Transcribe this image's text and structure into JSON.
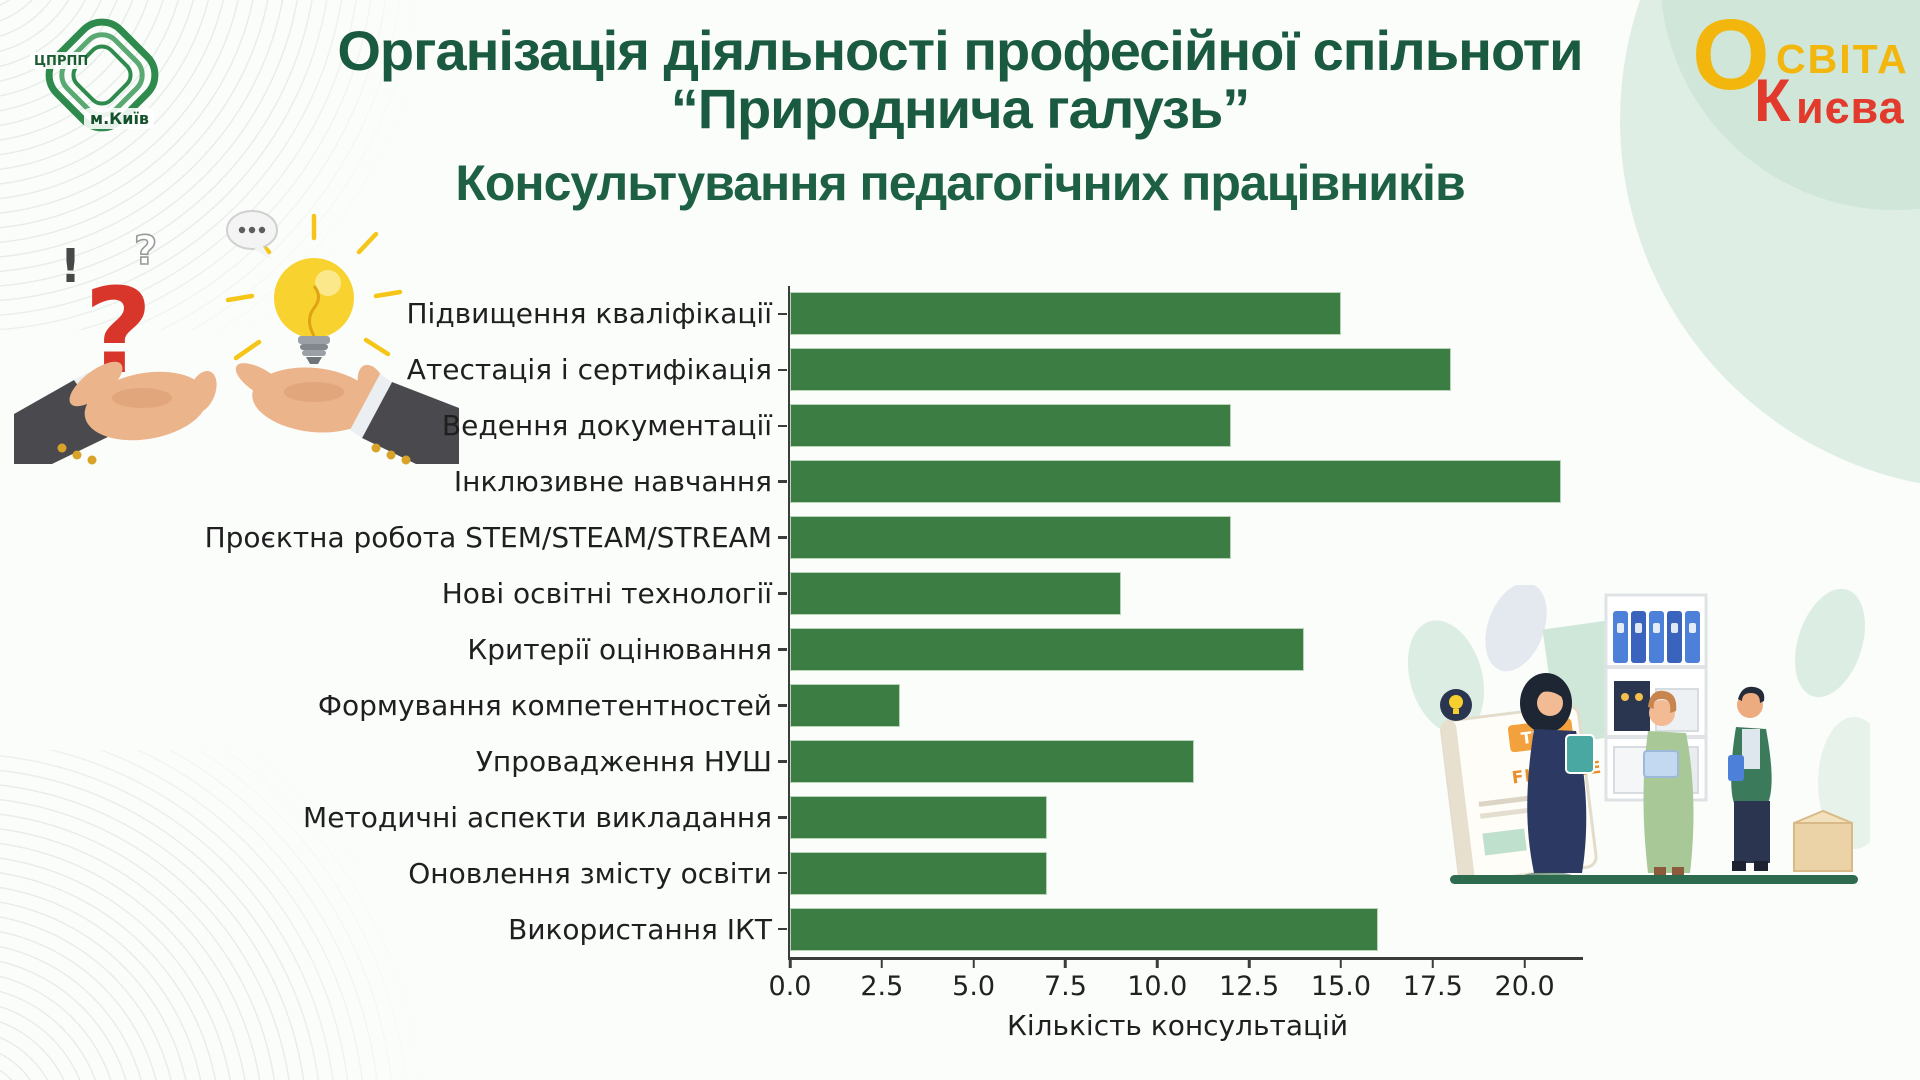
{
  "header": {
    "title_line1": "Організація діяльності професійної спільноти",
    "title_line2": "“Природнича галузь”",
    "subtitle": "Консультування педагогічних працівників"
  },
  "logos": {
    "left_emblem": {
      "acronym": "ЦПРПП",
      "city": "м.Київ"
    },
    "right_logo": {
      "letter_o": "О",
      "svita_rest": "СВІТА",
      "letter_k": "К",
      "kyieva_rest": "иєва"
    }
  },
  "illustrations": {
    "exclamation_mark": "!",
    "question_outline": "?",
    "question_red": "?",
    "board_badge": "TIPS",
    "board_title": "FINANCE"
  },
  "chart_data": {
    "type": "bar",
    "orientation": "horizontal",
    "title": "",
    "xlabel": "Кількість консультацій",
    "ylabel": "",
    "categories": [
      "Підвищення кваліфікації",
      "Атестація і сертифікація",
      "Ведення документації",
      "Інклюзивне навчання",
      "Проєктна робота STEM/STEAM/STREAM",
      "Нові освітні технології",
      "Критерії оцінювання",
      "Формування компетентностей",
      "Упровадження НУШ",
      "Методичні аспекти викладання",
      "Оновлення змісту освіти",
      "Використання ІКТ"
    ],
    "values": [
      15,
      18,
      12,
      21,
      12,
      9,
      14,
      3,
      11,
      7,
      7,
      16
    ],
    "xticks": [
      0.0,
      2.5,
      5.0,
      7.5,
      10.0,
      12.5,
      15.0,
      17.5,
      20.0
    ],
    "xtick_labels": [
      "0.0",
      "2.5",
      "5.0",
      "7.5",
      "10.0",
      "12.5",
      "15.0",
      "17.5",
      "20.0"
    ],
    "xlim": [
      0,
      21.1
    ],
    "grid": false,
    "legend": null,
    "bar_color": "#3b7d42"
  },
  "colors": {
    "title_green": "#1a5a40",
    "bar_green": "#3b7d42",
    "blob_green": "#dfeee5",
    "logo_yellow": "#f2b60d",
    "logo_red": "#e23a2c"
  }
}
